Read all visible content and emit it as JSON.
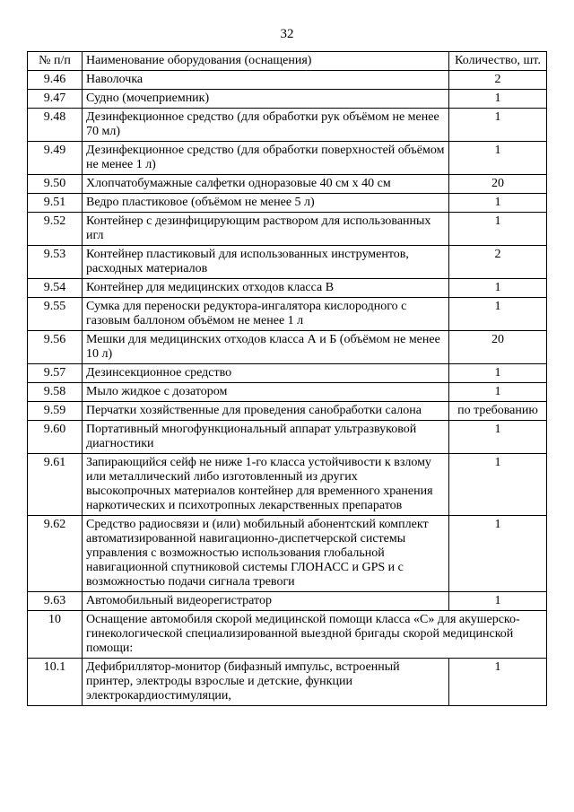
{
  "page_number": "32",
  "headers": {
    "num": "№ п/п",
    "name": "Наименование оборудования (оснащения)",
    "qty": "Количество, шт."
  },
  "rows": [
    {
      "num": "9.46",
      "name": "Наволочка",
      "qty": "2"
    },
    {
      "num": "9.47",
      "name": "Судно (мочеприемник)",
      "qty": "1"
    },
    {
      "num": "9.48",
      "name": "Дезинфекционное средство (для обработки рук объёмом не менее 70 мл)",
      "qty": "1"
    },
    {
      "num": "9.49",
      "name": "Дезинфекционное средство (для обработки поверхностей  объёмом не менее 1 л)",
      "qty": "1"
    },
    {
      "num": "9.50",
      "name": "Хлопчатобумажные салфетки одноразовые 40 см x 40 см",
      "qty": "20"
    },
    {
      "num": "9.51",
      "name": "Ведро пластиковое (объёмом не менее 5 л)",
      "qty": "1"
    },
    {
      "num": "9.52",
      "name": "Контейнер с дезинфицирующим раствором для использованных игл",
      "qty": "1"
    },
    {
      "num": "9.53",
      "name": "Контейнер пластиковый для использованных инструментов, расходных материалов",
      "qty": "2"
    },
    {
      "num": "9.54",
      "name": "Контейнер для медицинских отходов класса В",
      "qty": "1"
    },
    {
      "num": "9.55",
      "name": "Сумка для переноски редуктора-ингалятора кислородного с газовым баллоном объёмом не менее 1 л",
      "qty": "1"
    },
    {
      "num": "9.56",
      "name": "Мешки для медицинских отходов класса А и Б (объёмом не менее 10 л)",
      "qty": "20"
    },
    {
      "num": "9.57",
      "name": "Дезинсекционное средство",
      "qty": "1"
    },
    {
      "num": "9.58",
      "name": "Мыло жидкое с дозатором",
      "qty": "1"
    },
    {
      "num": "9.59",
      "name": "Перчатки хозяйственные для проведения санобработки салона",
      "qty": "по требованию"
    },
    {
      "num": "9.60",
      "name": "Портативный многофункциональный аппарат ультразвуковой диагностики",
      "qty": "1"
    },
    {
      "num": "9.61",
      "name": "Запирающийся сейф не ниже 1-го класса устойчивости к взлому или металлический либо изготовленный из других высокопрочных материалов контейнер для временного хранения наркотических и психотропных лекарственных препаратов",
      "qty": "1"
    },
    {
      "num": "9.62",
      "name": "Средство радиосвязи и (или) мобильный абонентский комплект автоматизированной навигационно-диспетчерской системы управления с возможностью использования глобальной навигационной спутниковой системы ГЛОНАСС и GPS и с возможностью подачи сигнала тревоги",
      "qty": "1"
    },
    {
      "num": "9.63",
      "name": "Автомобильный видеорегистратор",
      "qty": "1"
    },
    {
      "num": "10",
      "name": "Оснащение автомобиля скорой медицинской помощи класса «С» для акушерско-гинекологической специализированной выездной бригады скорой медицинской помощи:",
      "qty": null,
      "section": true
    },
    {
      "num": "10.1",
      "name": "Дефибриллятор-монитор (бифазный импульс, встроенный принтер, электроды взрослые и детские, функции электрокардиостимуляции,",
      "qty": "1"
    }
  ]
}
